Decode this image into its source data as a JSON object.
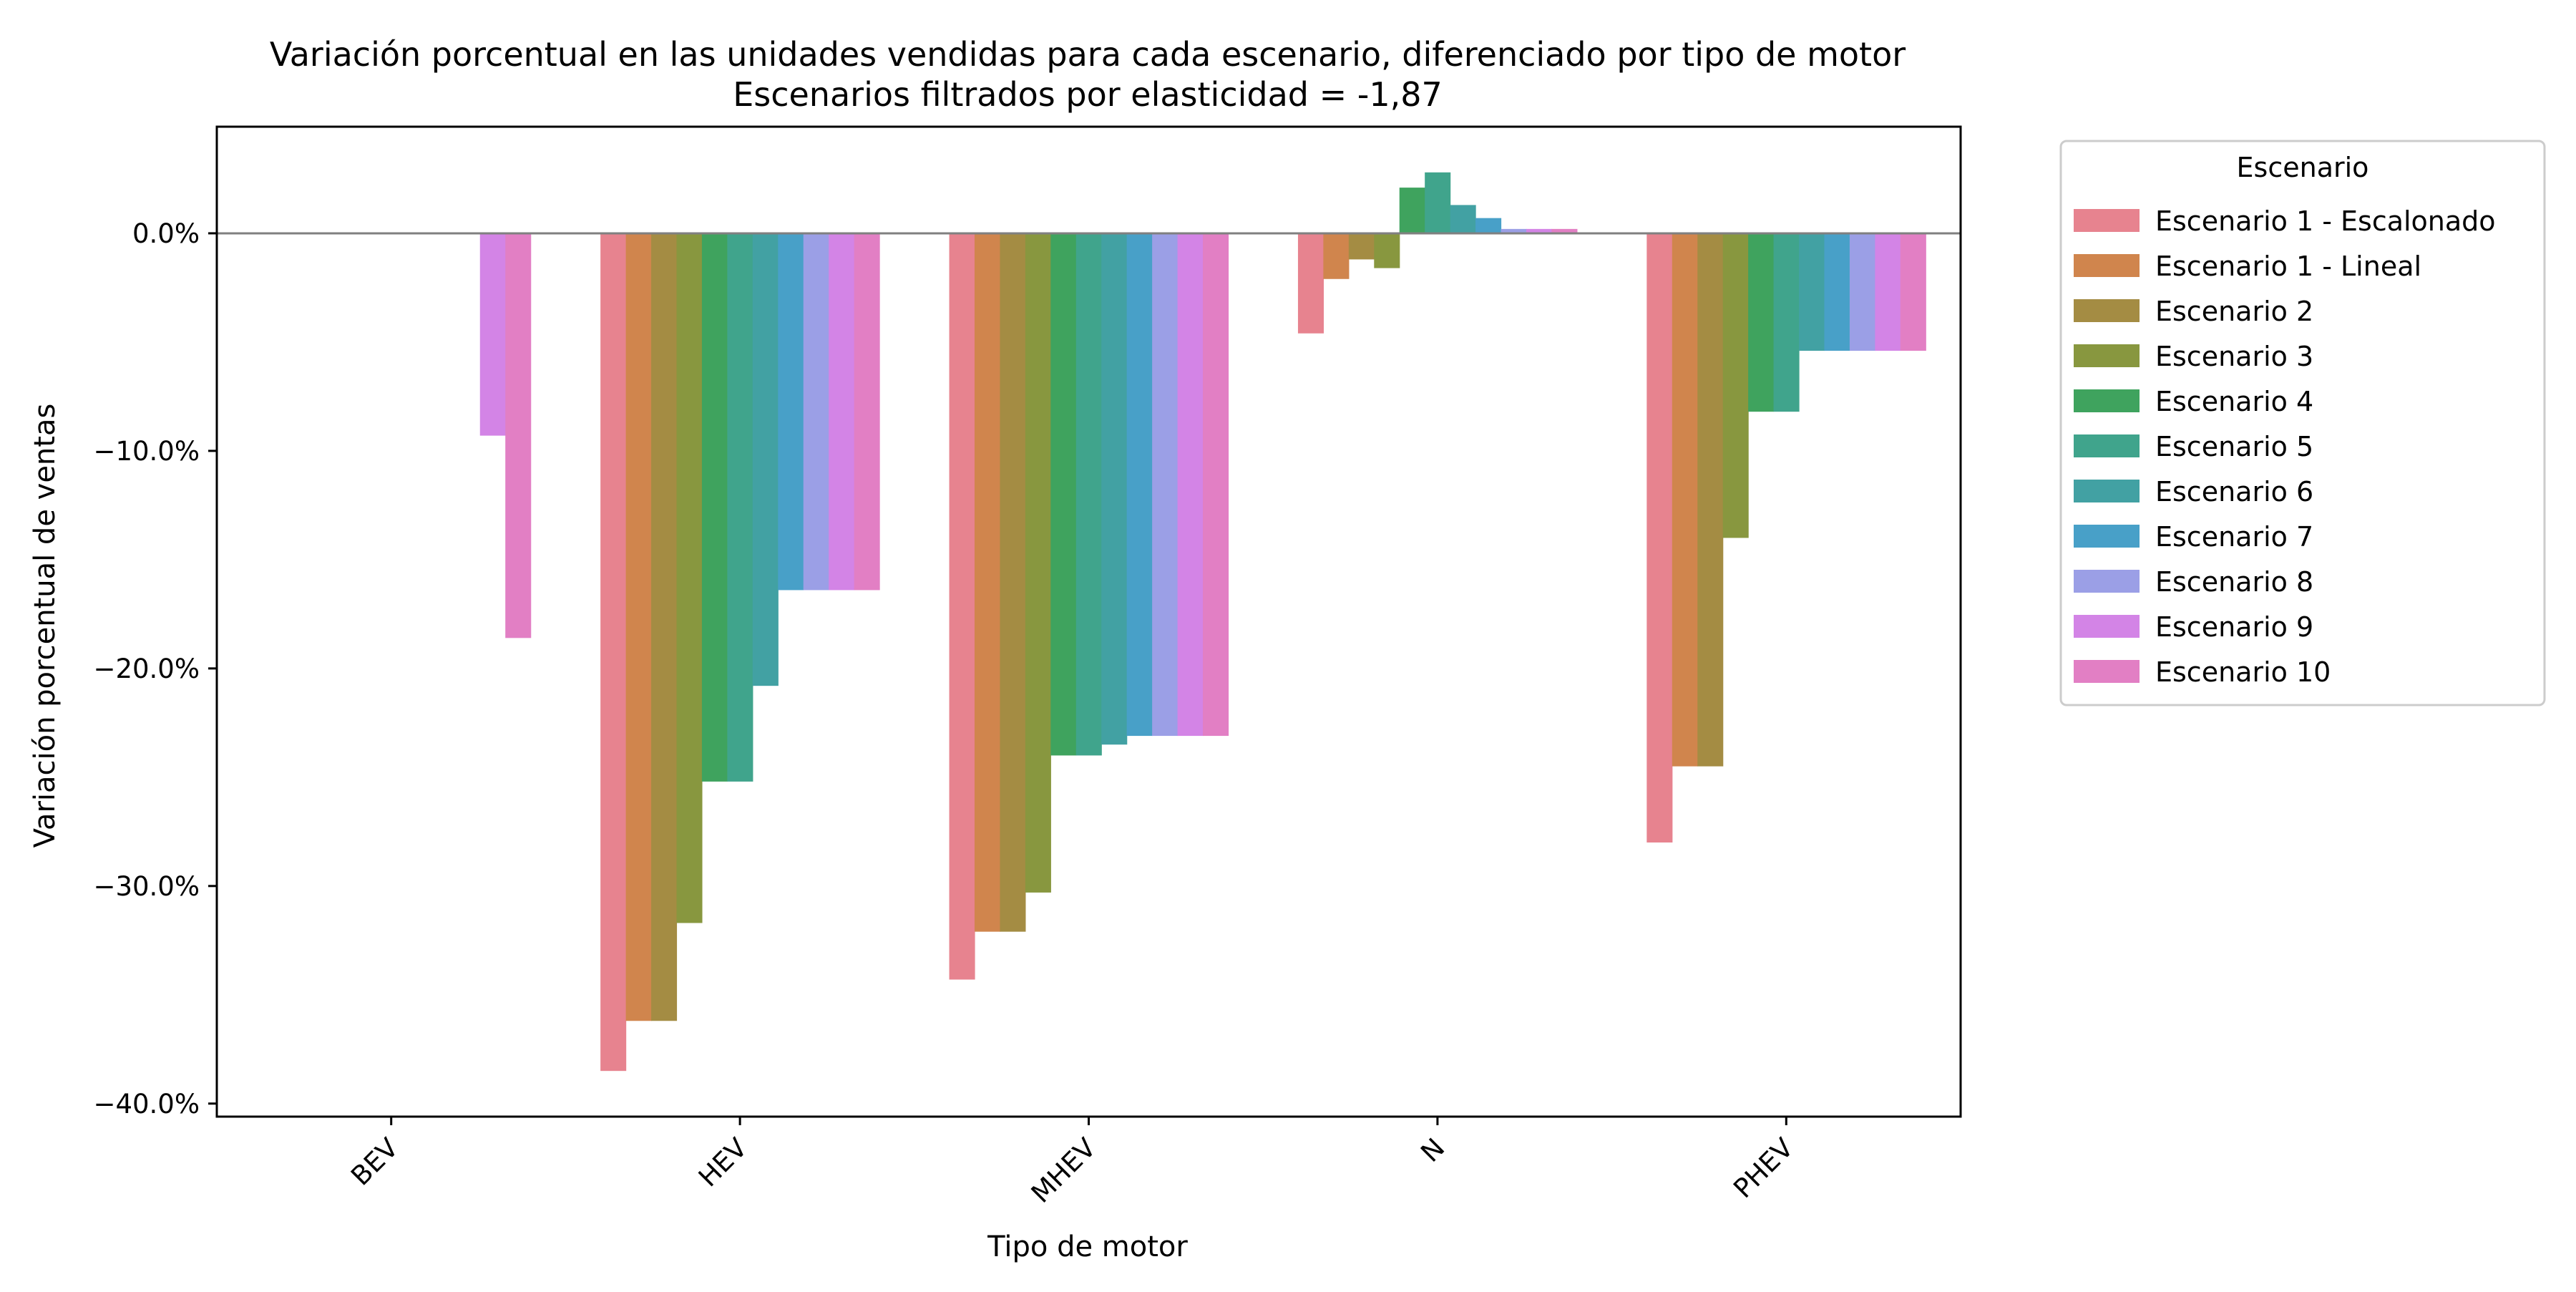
{
  "chart_data": {
    "type": "bar",
    "title": "Variación porcentual en las unidades vendidas para cada escenario, diferenciado por tipo de motor",
    "subtitle": "Escenarios filtrados por elasticidad = -1,87",
    "xlabel": "Tipo de motor",
    "ylabel": "Variación porcentual de ventas",
    "categories": [
      "BEV",
      "HEV",
      "MHEV",
      "N",
      "PHEV"
    ],
    "ylim": [
      -40.6,
      4.9
    ],
    "yticks": [
      0,
      -10,
      -20,
      -30,
      -40
    ],
    "ytick_labels": [
      "0.0%",
      "−10.0%",
      "−20.0%",
      "−30.0%",
      "−40.0%"
    ],
    "grid": false,
    "zero_line": true,
    "legend": {
      "title": "Escenario",
      "placement": "outside-top-right"
    },
    "series": [
      {
        "name": "Escenario 1 - Escalonado",
        "color": "#e7838f",
        "values": [
          null,
          -38.5,
          -34.3,
          -4.6,
          -28.0
        ]
      },
      {
        "name": "Escenario 1 - Lineal",
        "color": "#d0854d",
        "values": [
          null,
          -36.2,
          -32.1,
          -2.1,
          -24.5
        ]
      },
      {
        "name": "Escenario 2",
        "color": "#a48c43",
        "values": [
          null,
          -36.2,
          -32.1,
          -1.2,
          -24.5
        ]
      },
      {
        "name": "Escenario 3",
        "color": "#88973f",
        "values": [
          null,
          -31.7,
          -30.3,
          -1.6,
          -14.0
        ]
      },
      {
        "name": "Escenario 4",
        "color": "#3fa35e",
        "values": [
          null,
          -25.2,
          -24.0,
          2.1,
          -8.2
        ]
      },
      {
        "name": "Escenario 5",
        "color": "#40a48c",
        "values": [
          null,
          -25.2,
          -24.0,
          2.8,
          -8.2
        ]
      },
      {
        "name": "Escenario 6",
        "color": "#42a1a3",
        "values": [
          null,
          -20.8,
          -23.5,
          1.3,
          -5.4
        ]
      },
      {
        "name": "Escenario 7",
        "color": "#48a0c8",
        "values": [
          null,
          -16.4,
          -23.1,
          0.7,
          -5.4
        ]
      },
      {
        "name": "Escenario 8",
        "color": "#9b9fe6",
        "values": [
          null,
          -16.4,
          -23.1,
          0.2,
          -5.4
        ]
      },
      {
        "name": "Escenario 9",
        "color": "#d384e6",
        "values": [
          -9.3,
          -16.4,
          -23.1,
          0.2,
          -5.4
        ]
      },
      {
        "name": "Escenario 10",
        "color": "#e27fc4",
        "values": [
          -18.6,
          -16.4,
          -23.1,
          0.2,
          -5.4
        ]
      }
    ]
  }
}
